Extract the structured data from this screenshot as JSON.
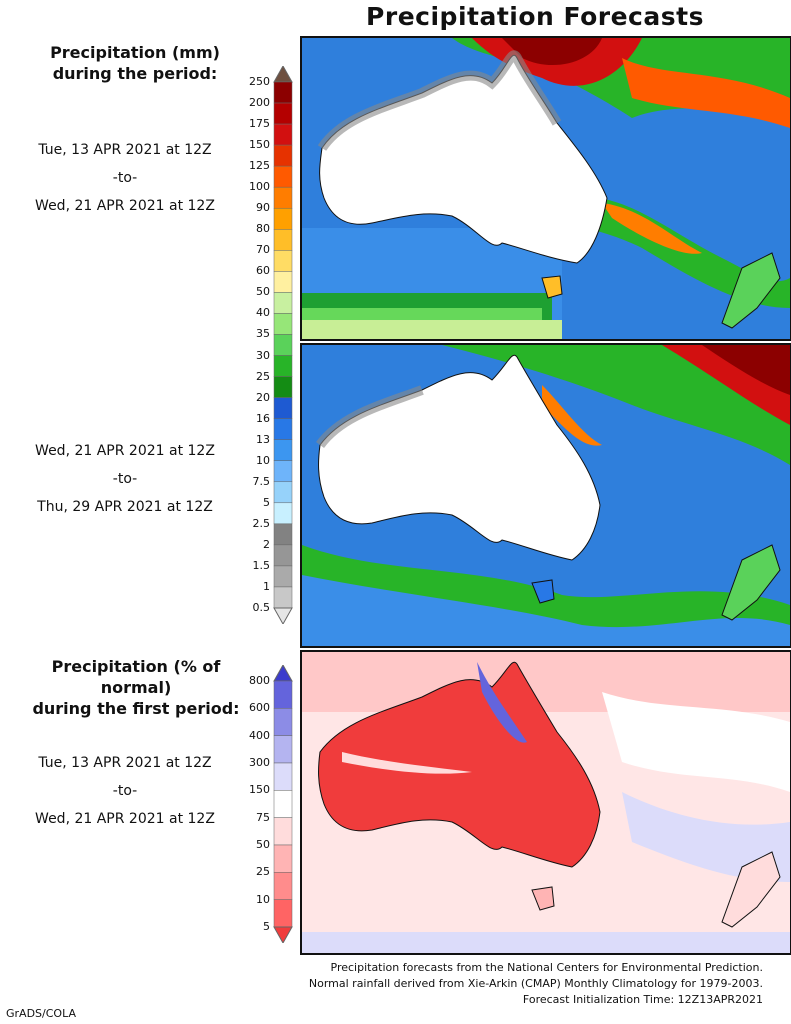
{
  "title": "Precipitation Forecasts",
  "amount_header": [
    "Precipitation (mm)",
    "during the period:"
  ],
  "period1": {
    "start": "Tue, 13 APR 2021 at 12Z",
    "sep": "-to-",
    "end": "Wed, 21 APR 2021 at 12Z"
  },
  "period2": {
    "start": "Wed, 21 APR 2021 at 12Z",
    "sep": "-to-",
    "end": "Thu, 29 APR 2021 at 12Z"
  },
  "anomaly_header": [
    "Precipitation (% of normal)",
    "during the first period:"
  ],
  "period3": {
    "start": "Tue, 13 APR 2021 at 12Z",
    "sep": "-to-",
    "end": "Wed, 21 APR 2021 at 12Z"
  },
  "mm_scale": {
    "labels": [
      "250",
      "200",
      "175",
      "150",
      "125",
      "100",
      "90",
      "80",
      "70",
      "60",
      "50",
      "40",
      "35",
      "30",
      "25",
      "20",
      "16",
      "13",
      "10",
      "7.5",
      "5",
      "2.5",
      "2",
      "1.5",
      "1",
      "0.5"
    ],
    "colors": [
      "#6e5040",
      "#8c0000",
      "#b40000",
      "#d21010",
      "#e63200",
      "#ff5a00",
      "#ff7d00",
      "#ffa000",
      "#ffbe28",
      "#ffdc64",
      "#fff0a0",
      "#c8f0a0",
      "#96e678",
      "#5ad25a",
      "#28b428",
      "#148c14",
      "#1e5ad2",
      "#2878e6",
      "#3c96f0",
      "#6eb4fa",
      "#96d2fa",
      "#c8f0ff",
      "#828282",
      "#969696",
      "#aaaaaa",
      "#c8c8c8",
      "#e6e6e6"
    ]
  },
  "pct_scale": {
    "labels": [
      "800",
      "600",
      "400",
      "300",
      "150",
      "75",
      "50",
      "25",
      "10",
      "5"
    ],
    "colors": [
      "#3c3ccc",
      "#6464dc",
      "#8c8ce6",
      "#b4b4f0",
      "#dcdcfa",
      "#ffffff",
      "#ffdcdc",
      "#ffb4b4",
      "#ff8c8c",
      "#ff6464",
      "#f03c3c"
    ]
  },
  "footer": [
    "Precipitation forecasts from the National Centers for Environmental Prediction.",
    "Normal rainfall derived from Xie-Arkin (CMAP) Monthly Climatology for 1979-2003.",
    "Forecast Initialization Time: 12Z13APR2021"
  ],
  "credit": "GrADS/COLA"
}
